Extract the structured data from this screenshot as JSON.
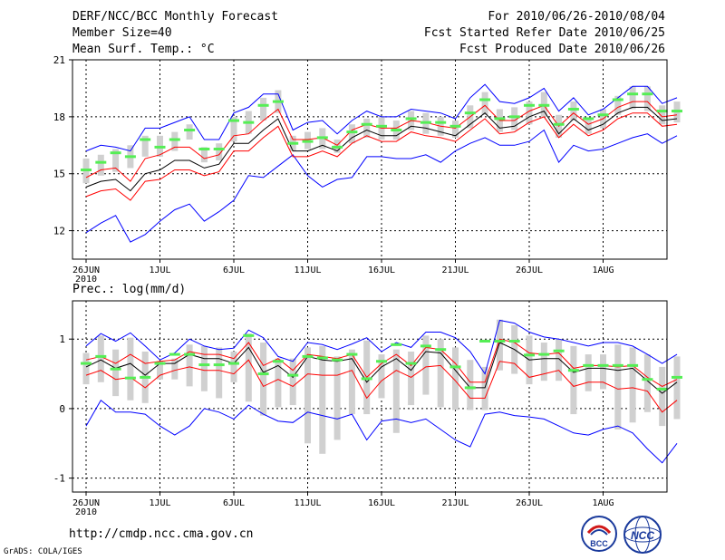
{
  "header": {
    "line1_left": "DERF/NCC/BCC Monthly Forecast",
    "line2_left": "Member Size=40",
    "line3_left": "Mean Surf. Temp.: °C",
    "line1_right": "For 2010/06/26-2010/08/04",
    "line2_right": "Fcst Started Refer Date 2010/06/25",
    "line3_right": "Fcst Produced Date 2010/06/26"
  },
  "footer": {
    "url": "http://cmdp.ncc.cma.gov.cn",
    "grads": "GrADS: COLA/IGES",
    "logo_bcc": "BCC",
    "logo_ncc": "NCC"
  },
  "colors": {
    "envelope": "#0000ff",
    "quartile": "#ff0000",
    "median": "#000000",
    "mean": "#55ee55",
    "box": "#d0d0d0",
    "grid": "#000000"
  },
  "chart_data": [
    {
      "type": "line",
      "title": "Mean Surf. Temp.: °C",
      "x_tick_labels": [
        "26JUN",
        "1JUL",
        "6JUL",
        "11JUL",
        "16JUL",
        "21JUL",
        "26JUL",
        "1AUG"
      ],
      "x_year_label": "2010",
      "ylim": [
        10.5,
        21
      ],
      "y_ticks": [
        12,
        15,
        18,
        21
      ],
      "grid": true,
      "series": [
        {
          "name": "max",
          "values": [
            16.2,
            16.5,
            16.4,
            16.2,
            17.4,
            17.4,
            17.7,
            18.0,
            16.8,
            16.8,
            18.2,
            18.5,
            19.2,
            19.2,
            17.3,
            17.7,
            17.8,
            17.1,
            17.8,
            18.3,
            18.0,
            18.0,
            18.4,
            18.3,
            18.2,
            17.9,
            19.0,
            19.7,
            18.8,
            18.7,
            19.0,
            19.5,
            18.3,
            19.0,
            18.1,
            18.4,
            19.0,
            19.6,
            19.6,
            18.7,
            19.0
          ]
        },
        {
          "name": "q75",
          "values": [
            14.8,
            15.2,
            15.3,
            14.6,
            15.8,
            16.0,
            16.4,
            16.4,
            15.8,
            16.0,
            17.0,
            17.1,
            17.8,
            18.4,
            16.8,
            16.8,
            16.9,
            16.5,
            17.3,
            17.6,
            17.4,
            17.4,
            17.8,
            17.7,
            17.5,
            17.4,
            18.0,
            18.6,
            17.8,
            17.8,
            18.3,
            18.6,
            17.5,
            18.2,
            17.6,
            17.9,
            18.5,
            18.8,
            18.8,
            18.0,
            18.1
          ]
        },
        {
          "name": "median",
          "values": [
            14.3,
            14.6,
            14.7,
            14.1,
            15.0,
            15.2,
            15.7,
            15.7,
            15.3,
            15.5,
            16.6,
            16.6,
            17.3,
            17.9,
            16.2,
            16.2,
            16.5,
            16.2,
            16.9,
            17.3,
            17.0,
            17.0,
            17.5,
            17.4,
            17.2,
            17.0,
            17.6,
            18.2,
            17.4,
            17.5,
            18.0,
            18.3,
            17.1,
            17.9,
            17.3,
            17.6,
            18.2,
            18.5,
            18.5,
            17.8,
            17.9
          ]
        },
        {
          "name": "q25",
          "values": [
            13.8,
            14.1,
            14.2,
            13.6,
            14.6,
            14.7,
            15.2,
            15.2,
            14.9,
            15.1,
            16.2,
            16.2,
            16.9,
            17.5,
            15.9,
            15.9,
            16.2,
            15.9,
            16.6,
            17.0,
            16.7,
            16.7,
            17.2,
            17.0,
            16.9,
            16.7,
            17.3,
            17.9,
            17.1,
            17.2,
            17.7,
            18.0,
            16.9,
            17.6,
            17.0,
            17.3,
            17.9,
            18.2,
            18.2,
            17.5,
            17.6
          ]
        },
        {
          "name": "min",
          "values": [
            11.9,
            12.4,
            12.8,
            11.4,
            11.8,
            12.5,
            13.1,
            13.4,
            12.5,
            13.0,
            13.6,
            14.9,
            14.8,
            15.4,
            16.0,
            14.9,
            14.3,
            14.7,
            14.8,
            15.9,
            15.9,
            15.8,
            15.8,
            16.0,
            15.6,
            16.2,
            16.6,
            16.9,
            16.5,
            16.5,
            16.7,
            17.3,
            15.6,
            16.5,
            16.2,
            16.3,
            16.6,
            16.9,
            17.1,
            16.6,
            17.0
          ]
        },
        {
          "name": "ensemble-mean",
          "values": [
            15.2,
            15.6,
            16.1,
            15.9,
            16.8,
            16.4,
            16.8,
            17.3,
            16.3,
            16.3,
            17.8,
            17.7,
            18.6,
            18.8,
            16.6,
            16.7,
            16.9,
            16.4,
            17.2,
            17.6,
            17.5,
            17.3,
            17.9,
            17.7,
            17.7,
            17.5,
            18.2,
            18.9,
            17.9,
            18.0,
            18.6,
            18.6,
            17.6,
            18.4,
            17.9,
            18.1,
            18.9,
            19.2,
            19.2,
            18.3,
            18.3
          ]
        },
        {
          "name": "box-top",
          "values": [
            15.8,
            16.0,
            16.3,
            16.5,
            17.0,
            17.0,
            17.2,
            17.6,
            16.4,
            16.6,
            18.0,
            18.3,
            19.0,
            19.4,
            17.0,
            17.2,
            17.4,
            16.8,
            17.6,
            17.9,
            18.0,
            17.8,
            18.3,
            18.2,
            18.0,
            17.8,
            18.6,
            19.3,
            18.4,
            18.5,
            18.8,
            19.3,
            18.1,
            18.8,
            17.9,
            18.4,
            19.1,
            19.6,
            19.6,
            18.6,
            18.8
          ]
        },
        {
          "name": "box-bottom",
          "values": [
            14.5,
            14.9,
            15.1,
            15.3,
            15.9,
            15.9,
            16.2,
            16.8,
            15.6,
            15.7,
            16.7,
            17.1,
            17.8,
            18.2,
            16.2,
            16.3,
            16.3,
            16.1,
            16.6,
            16.9,
            16.8,
            16.8,
            17.3,
            17.1,
            17.0,
            16.9,
            17.4,
            18.1,
            17.2,
            17.3,
            17.6,
            18.0,
            16.9,
            17.8,
            17.1,
            17.4,
            18.1,
            18.4,
            18.3,
            17.6,
            17.7
          ]
        }
      ]
    },
    {
      "type": "line",
      "title": "Prec.: log(mm/d)",
      "x_tick_labels": [
        "26JUN",
        "1JUL",
        "6JUL",
        "11JUL",
        "16JUL",
        "21JUL",
        "26JUL",
        "1AUG"
      ],
      "x_year_label": "2010",
      "ylim": [
        -1.2,
        1.55
      ],
      "y_ticks": [
        -1,
        0,
        1
      ],
      "grid": true,
      "series": [
        {
          "name": "max",
          "values": [
            0.9,
            1.08,
            0.97,
            1.09,
            0.9,
            0.7,
            0.8,
            1.0,
            0.9,
            0.85,
            0.87,
            1.13,
            1.02,
            0.75,
            0.68,
            0.95,
            0.92,
            0.85,
            0.93,
            1.02,
            0.82,
            0.95,
            0.88,
            1.1,
            1.1,
            1.02,
            0.82,
            0.5,
            1.27,
            1.23,
            1.1,
            1.03,
            1.0,
            0.95,
            0.9,
            0.95,
            0.95,
            0.9,
            0.78,
            0.65,
            0.78
          ]
        },
        {
          "name": "q75",
          "values": [
            0.7,
            0.75,
            0.65,
            0.78,
            0.65,
            0.68,
            0.7,
            0.82,
            0.78,
            0.78,
            0.72,
            0.95,
            0.62,
            0.72,
            0.55,
            0.78,
            0.75,
            0.72,
            0.78,
            0.45,
            0.65,
            0.78,
            0.62,
            0.88,
            0.85,
            0.65,
            0.38,
            0.38,
            1.0,
            0.95,
            0.8,
            0.78,
            0.8,
            0.58,
            0.62,
            0.62,
            0.6,
            0.62,
            0.45,
            0.32,
            0.42
          ]
        },
        {
          "name": "median",
          "values": [
            0.6,
            0.7,
            0.58,
            0.65,
            0.48,
            0.65,
            0.65,
            0.78,
            0.72,
            0.72,
            0.65,
            0.88,
            0.52,
            0.62,
            0.45,
            0.75,
            0.7,
            0.68,
            0.72,
            0.38,
            0.6,
            0.72,
            0.55,
            0.82,
            0.8,
            0.55,
            0.3,
            0.3,
            0.95,
            0.85,
            0.7,
            0.72,
            0.72,
            0.52,
            0.58,
            0.58,
            0.55,
            0.58,
            0.4,
            0.22,
            0.38
          ]
        },
        {
          "name": "q25",
          "values": [
            0.48,
            0.55,
            0.42,
            0.45,
            0.3,
            0.48,
            0.55,
            0.6,
            0.55,
            0.55,
            0.5,
            0.7,
            0.32,
            0.42,
            0.32,
            0.5,
            0.48,
            0.48,
            0.55,
            0.15,
            0.4,
            0.55,
            0.45,
            0.6,
            0.62,
            0.4,
            0.15,
            0.15,
            0.68,
            0.65,
            0.45,
            0.5,
            0.55,
            0.32,
            0.38,
            0.38,
            0.28,
            0.3,
            0.25,
            -0.05,
            0.12
          ]
        },
        {
          "name": "min",
          "values": [
            -0.25,
            0.12,
            -0.05,
            -0.05,
            -0.08,
            -0.25,
            -0.38,
            -0.25,
            0.0,
            -0.05,
            -0.15,
            0.05,
            -0.08,
            -0.18,
            -0.2,
            -0.05,
            -0.1,
            -0.15,
            -0.08,
            -0.45,
            -0.18,
            -0.15,
            -0.2,
            -0.15,
            -0.3,
            -0.45,
            -0.55,
            -0.08,
            -0.05,
            -0.1,
            -0.12,
            -0.15,
            -0.25,
            -0.35,
            -0.38,
            -0.3,
            -0.25,
            -0.35,
            -0.58,
            -0.78,
            -0.5
          ]
        },
        {
          "name": "ensemble-mean",
          "values": [
            0.65,
            0.75,
            0.57,
            0.44,
            0.45,
            0.65,
            0.78,
            0.78,
            0.63,
            0.63,
            0.65,
            1.05,
            0.5,
            0.68,
            0.48,
            0.75,
            0.73,
            0.7,
            0.78,
            0.43,
            0.68,
            0.92,
            0.65,
            0.9,
            0.85,
            0.6,
            0.3,
            0.97,
            0.97,
            0.97,
            0.77,
            0.78,
            0.83,
            0.55,
            0.62,
            0.62,
            0.62,
            0.62,
            0.42,
            0.28,
            0.45
          ]
        },
        {
          "name": "box-top",
          "values": [
            0.8,
            1.05,
            0.85,
            1.02,
            0.82,
            0.68,
            0.72,
            0.92,
            0.9,
            0.88,
            0.82,
            1.08,
            0.95,
            0.72,
            0.72,
            0.88,
            0.9,
            0.75,
            0.85,
            0.98,
            0.78,
            0.85,
            0.82,
            1.05,
            1.0,
            0.88,
            0.7,
            0.6,
            1.28,
            1.2,
            1.05,
            0.95,
            1.0,
            0.9,
            0.78,
            0.78,
            0.92,
            0.88,
            0.78,
            0.6,
            0.75
          ]
        },
        {
          "name": "box-bottom",
          "values": [
            0.35,
            0.38,
            0.18,
            0.12,
            0.08,
            0.42,
            0.42,
            0.32,
            0.25,
            0.15,
            0.38,
            0.1,
            -0.1,
            0.02,
            0.05,
            -0.5,
            -0.65,
            -0.45,
            -0.08,
            -0.08,
            0.15,
            -0.35,
            0.05,
            0.2,
            0.02,
            -0.02,
            -0.02,
            -0.02,
            0.55,
            0.5,
            0.35,
            0.4,
            0.4,
            -0.08,
            0.25,
            0.28,
            -0.3,
            -0.2,
            -0.05,
            -0.25,
            -0.15
          ]
        }
      ]
    }
  ]
}
